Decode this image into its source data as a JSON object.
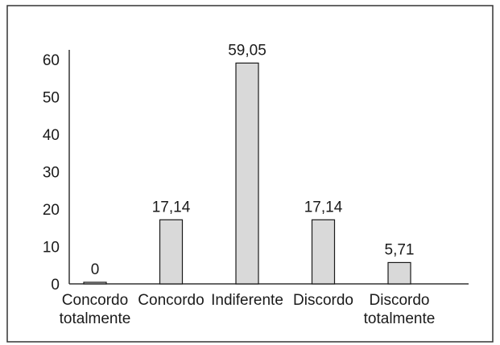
{
  "chart_data": {
    "type": "bar",
    "categories": [
      [
        "Concordo",
        "totalmente"
      ],
      [
        "Concordo"
      ],
      [
        "Indiferente"
      ],
      [
        "Discordo"
      ],
      [
        "Discordo",
        "totalmente"
      ]
    ],
    "values": [
      0,
      17.14,
      59.05,
      17.14,
      5.71
    ],
    "data_labels": [
      "0",
      "17,14",
      "59,05",
      "17,14",
      "5,71"
    ],
    "yticks": [
      0,
      10,
      20,
      30,
      40,
      50,
      60
    ],
    "ylim": [
      0,
      60
    ],
    "title": "",
    "xlabel": "",
    "ylabel": "",
    "grid": false,
    "bar_color": "#d9d9d9",
    "bar_stroke": "#1a1a1a",
    "frame_color": "#333333"
  }
}
